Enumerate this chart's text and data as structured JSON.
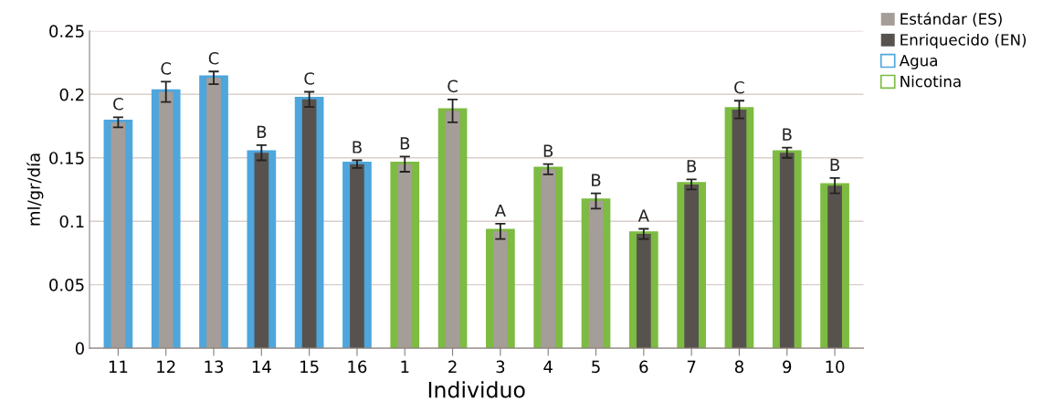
{
  "chart_data": {
    "type": "bar",
    "xlabel": "Individuo",
    "ylabel": "ml/gr/día",
    "categories": [
      "11",
      "12",
      "13",
      "14",
      "15",
      "16",
      "1",
      "2",
      "3",
      "4",
      "5",
      "6",
      "7",
      "8",
      "9",
      "10"
    ],
    "series": [
      {
        "name": "Estándar (ES)",
        "color": "#a59d98",
        "values": [
          0.178,
          0.202,
          0.213,
          null,
          null,
          null,
          0.145,
          0.187,
          0.092,
          0.141,
          0.116,
          null,
          null,
          null,
          null,
          null
        ],
        "errors": [
          0.004,
          0.008,
          0.005,
          null,
          null,
          null,
          0.006,
          0.009,
          0.006,
          0.004,
          0.006,
          null,
          null,
          null,
          null,
          null
        ],
        "value_labels": [
          "C",
          "C",
          "C",
          null,
          null,
          null,
          "B",
          "C",
          "A",
          "B",
          "B",
          null,
          null,
          null,
          null,
          null
        ]
      },
      {
        "name": "Enriquecido (EN)",
        "color": "#58524e",
        "values": [
          null,
          null,
          null,
          0.154,
          0.196,
          0.145,
          null,
          null,
          null,
          null,
          null,
          0.09,
          0.129,
          0.188,
          0.154,
          0.128
        ],
        "errors": [
          null,
          null,
          null,
          0.006,
          0.006,
          0.003,
          null,
          null,
          null,
          null,
          null,
          0.004,
          0.004,
          0.007,
          0.004,
          0.006
        ],
        "value_labels": [
          null,
          null,
          null,
          "B",
          "C",
          "B",
          null,
          null,
          null,
          null,
          null,
          "A",
          "B",
          "C",
          "B",
          "B"
        ]
      },
      {
        "name": "Agua",
        "color": "#4ea6dc",
        "values": [
          0.178,
          0.202,
          0.213,
          0.154,
          0.196,
          0.145,
          null,
          null,
          null,
          null,
          null,
          null,
          null,
          null,
          null,
          null
        ]
      },
      {
        "name": "Nicotina",
        "color": "#7dbb42",
        "values": [
          null,
          null,
          null,
          null,
          null,
          null,
          0.145,
          0.187,
          0.092,
          0.141,
          0.116,
          0.09,
          0.129,
          0.188,
          0.154,
          0.128
        ]
      }
    ],
    "ylim": [
      0,
      0.25
    ],
    "yticks": [
      0,
      0.05,
      0.1,
      0.15,
      0.2,
      0.25
    ],
    "grid": "y",
    "legend": "top right"
  }
}
